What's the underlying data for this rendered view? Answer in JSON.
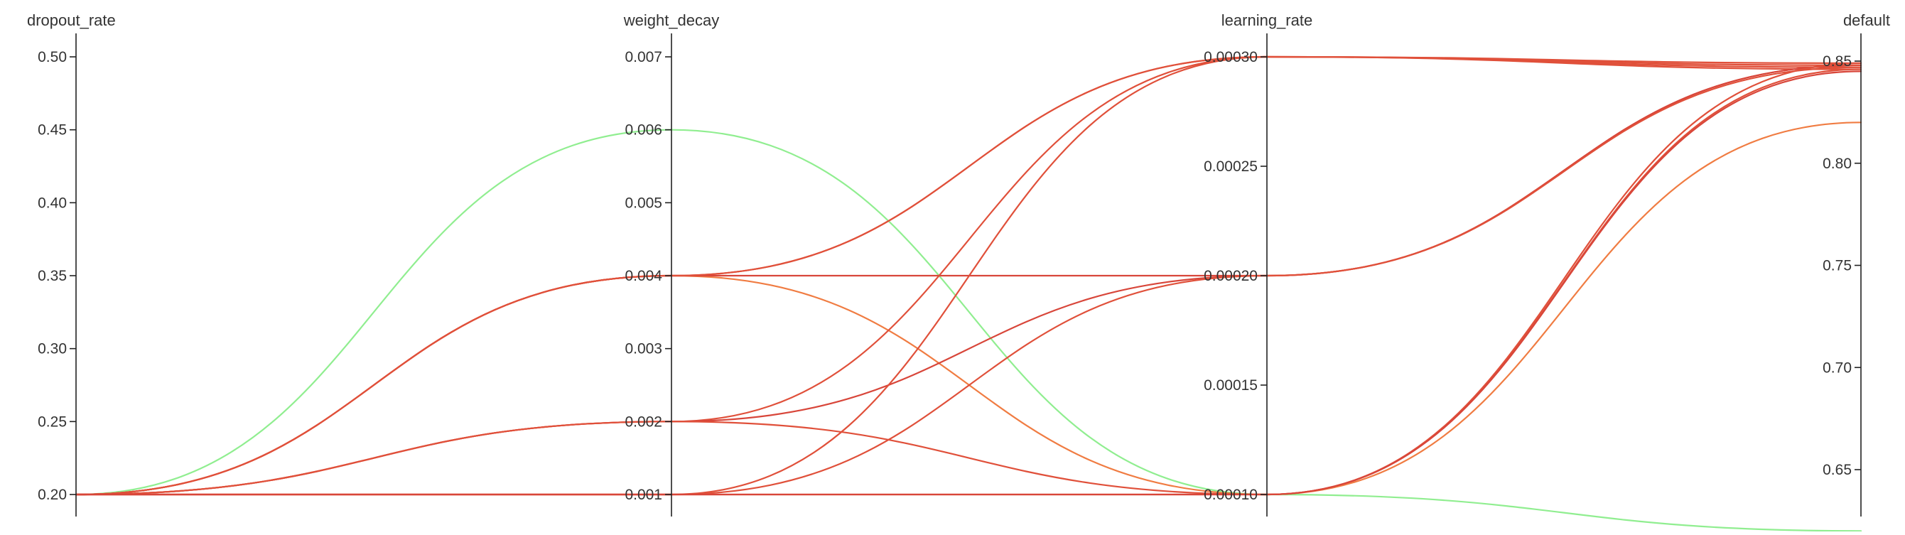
{
  "chart_data": {
    "type": "parallel_coordinates",
    "title": "",
    "axes": [
      {
        "key": "dropout_rate",
        "label": "dropout_rate",
        "min": 0.2,
        "max": 0.5,
        "ticks": [
          0.2,
          0.25,
          0.3,
          0.35,
          0.4,
          0.45,
          0.5
        ],
        "tick_labels": [
          "0.20",
          "0.25",
          "0.30",
          "0.35",
          "0.40",
          "0.45",
          "0.50"
        ]
      },
      {
        "key": "weight_decay",
        "label": "weight_decay",
        "min": 0.001,
        "max": 0.007,
        "ticks": [
          0.001,
          0.002,
          0.003,
          0.004,
          0.005,
          0.006,
          0.007
        ],
        "tick_labels": [
          "0.001",
          "0.002",
          "0.003",
          "0.004",
          "0.005",
          "0.006",
          "0.007"
        ]
      },
      {
        "key": "learning_rate",
        "label": "learning_rate",
        "min": 0.0001,
        "max": 0.0003,
        "ticks": [
          0.0001,
          0.00015,
          0.0002,
          0.00025,
          0.0003
        ],
        "tick_labels": [
          "0.00010",
          "0.00015",
          "0.00020",
          "0.00025",
          "0.00030"
        ]
      },
      {
        "key": "default",
        "label": "default",
        "min": 0.62,
        "max": 0.85,
        "ticks": [
          0.65,
          0.7,
          0.75,
          0.8,
          0.85
        ],
        "tick_labels": [
          "0.65",
          "0.70",
          "0.75",
          "0.80",
          "0.85"
        ]
      }
    ],
    "color_scale": {
      "metric": "default",
      "low": "#90ee90",
      "mid": "#f08040",
      "high": "#dc3c32"
    },
    "series": [
      {
        "values": [
          0.2,
          0.006,
          0.0001,
          0.62
        ],
        "color": "#90ee90"
      },
      {
        "values": [
          0.2,
          0.004,
          0.0001,
          0.82
        ],
        "color": "#f07c42"
      },
      {
        "values": [
          0.2,
          0.004,
          0.0003,
          0.849
        ],
        "color": "#e0503a"
      },
      {
        "values": [
          0.2,
          0.004,
          0.0002,
          0.848
        ],
        "color": "#d8463a"
      },
      {
        "values": [
          0.2,
          0.004,
          0.0003,
          0.847
        ],
        "color": "#e0503a"
      },
      {
        "values": [
          0.2,
          0.002,
          0.0003,
          0.846
        ],
        "color": "#e0503a"
      },
      {
        "values": [
          0.2,
          0.002,
          0.0002,
          0.848
        ],
        "color": "#d8463a"
      },
      {
        "values": [
          0.2,
          0.002,
          0.0001,
          0.849
        ],
        "color": "#e0503a"
      },
      {
        "values": [
          0.2,
          0.001,
          0.0003,
          0.848
        ],
        "color": "#e0503a"
      },
      {
        "values": [
          0.2,
          0.001,
          0.0002,
          0.847
        ],
        "color": "#e0503a"
      },
      {
        "values": [
          0.2,
          0.001,
          0.0001,
          0.846
        ],
        "color": "#e0503a"
      },
      {
        "values": [
          0.2,
          0.001,
          0.0001,
          0.845
        ],
        "color": "#d8463a"
      }
    ]
  }
}
